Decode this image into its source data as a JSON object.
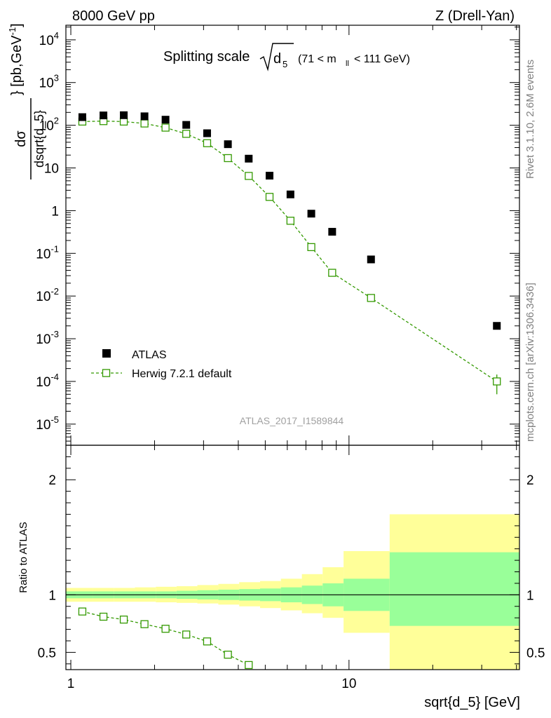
{
  "header": {
    "left": "8000 GeV pp",
    "right": "Z (Drell-Yan)"
  },
  "side_labels": {
    "rivet": "Rivet 3.1.10,  2.6M events",
    "mcplots": "mcplots.cern.ch [arXiv:1306.3436]"
  },
  "chart_data": [
    {
      "type": "scatter",
      "panel": "main",
      "title": {
        "prefix": "Splitting scale",
        "symbol": "d",
        "symbol_sub": "5",
        "range_open": "(71 < m",
        "range_sub": "ll",
        "range_close": " < 111 GeV)"
      },
      "watermark": "ATLAS_2017_I1589844",
      "ylabel": {
        "numerator": "dσ",
        "denominator": "dsqrt{d_5}",
        "units": "} [pb,GeV",
        "units_exp": "-1",
        "units_close": "]"
      },
      "xscale": "log",
      "yscale": "log",
      "xlim": [
        0.96,
        41
      ],
      "ylim": [
        3.2e-06,
        22000
      ],
      "yticks": [
        {
          "value": 1e-05,
          "base": "10",
          "exp": "-5"
        },
        {
          "value": 0.0001,
          "base": "10",
          "exp": "-4"
        },
        {
          "value": 0.001,
          "base": "10",
          "exp": "-3"
        },
        {
          "value": 0.01,
          "base": "10",
          "exp": "-2"
        },
        {
          "value": 0.1,
          "base": "10",
          "exp": "-1"
        },
        {
          "value": 1,
          "base": "1",
          "exp": ""
        },
        {
          "value": 10,
          "base": "10",
          "exp": ""
        },
        {
          "value": 100,
          "base": "10",
          "exp": "2"
        },
        {
          "value": 1000,
          "base": "10",
          "exp": "3"
        },
        {
          "value": 10000,
          "base": "10",
          "exp": "4"
        }
      ],
      "legend": {
        "position": "bottom-left",
        "entries": [
          "ATLAS",
          "Herwig 7.2.1 default"
        ]
      },
      "series": [
        {
          "name": "ATLAS",
          "marker": "filled-square",
          "color": "#000000",
          "x": [
            1.1,
            1.31,
            1.55,
            1.84,
            2.19,
            2.6,
            3.09,
            3.67,
            4.36,
            5.18,
            6.16,
            7.32,
            8.7,
            12.0,
            34.0
          ],
          "y": [
            155,
            170,
            172,
            162,
            135,
            102,
            65,
            36,
            16.5,
            6.6,
            2.4,
            0.85,
            0.32,
            0.072,
            0.002
          ]
        },
        {
          "name": "Herwig 7.2.1 default",
          "marker": "open-square",
          "line": "dashed",
          "color": "#339900",
          "x": [
            1.1,
            1.31,
            1.55,
            1.84,
            2.19,
            2.6,
            3.09,
            3.67,
            4.36,
            5.18,
            6.16,
            7.32,
            8.7,
            12.0,
            34.0
          ],
          "y": [
            122,
            125,
            122,
            110,
            88,
            63,
            38,
            17,
            6.5,
            2.1,
            0.58,
            0.14,
            0.035,
            0.009,
            0.0001
          ],
          "yerr_low": [
            0,
            0,
            0,
            0,
            0,
            0,
            0,
            0,
            0,
            0,
            0,
            0,
            0,
            0,
            5e-05
          ],
          "yerr_high": [
            0,
            0,
            0,
            0,
            0,
            0,
            0,
            0,
            0,
            0,
            0,
            0,
            0,
            0,
            4.5e-05
          ]
        }
      ]
    },
    {
      "type": "line",
      "panel": "ratio",
      "ylabel": "Ratio to ATLAS",
      "xlabel": "sqrt{d_5} [GeV]",
      "xscale": "log",
      "xlim": [
        0.96,
        41
      ],
      "ylim": [
        0.35,
        2.3
      ],
      "yticks": [
        0.5,
        1,
        2
      ],
      "xticks": [
        1,
        10
      ],
      "bands": {
        "edges": [
          0.96,
          1.2,
          1.43,
          1.7,
          2.02,
          2.4,
          2.85,
          3.39,
          4.03,
          4.79,
          5.69,
          6.77,
          8.04,
          9.56,
          14.0,
          41.0
        ],
        "inner_color": "#99ff99",
        "outer_color": "#ffff99",
        "inner_low": [
          0.97,
          0.97,
          0.97,
          0.97,
          0.97,
          0.965,
          0.96,
          0.955,
          0.95,
          0.945,
          0.935,
          0.92,
          0.9,
          0.86,
          0.73
        ],
        "inner_high": [
          1.03,
          1.03,
          1.03,
          1.03,
          1.03,
          1.035,
          1.04,
          1.045,
          1.05,
          1.055,
          1.065,
          1.08,
          1.1,
          1.14,
          1.37
        ],
        "outer_low": [
          0.94,
          0.94,
          0.94,
          0.94,
          0.935,
          0.93,
          0.925,
          0.915,
          0.9,
          0.885,
          0.865,
          0.84,
          0.8,
          0.67,
          0.2
        ],
        "outer_high": [
          1.06,
          1.06,
          1.06,
          1.065,
          1.07,
          1.075,
          1.085,
          1.095,
          1.11,
          1.12,
          1.14,
          1.18,
          1.24,
          1.38,
          1.7
        ]
      },
      "reference": 1.0,
      "series": [
        {
          "name": "Herwig 7.2.1 default / ATLAS",
          "marker": "open-square",
          "line": "dashed",
          "color": "#339900",
          "x": [
            1.1,
            1.31,
            1.55,
            1.84,
            2.19,
            2.6,
            3.09,
            3.67,
            4.36
          ],
          "y": [
            0.855,
            0.81,
            0.785,
            0.745,
            0.705,
            0.655,
            0.595,
            0.48,
            0.39
          ]
        }
      ]
    }
  ]
}
